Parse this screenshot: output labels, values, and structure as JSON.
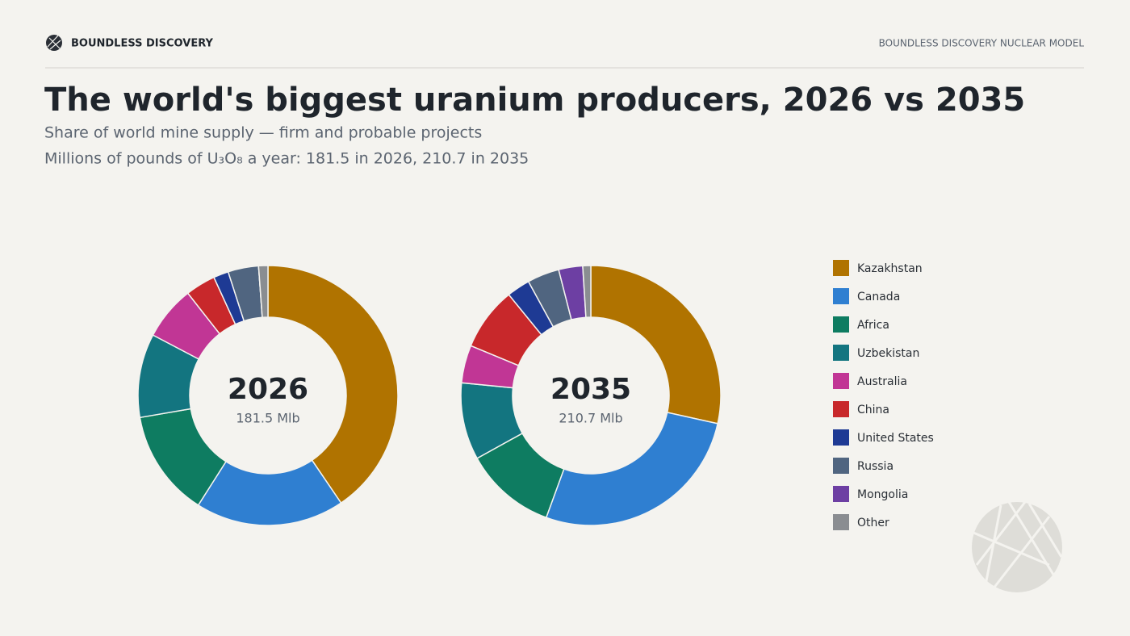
{
  "header": {
    "brand": "BOUNDLESS DISCOVERY",
    "model": "BOUNDLESS DISCOVERY NUCLEAR MODEL"
  },
  "chart_data": {
    "type": "donut",
    "title": "The world's biggest uranium producers, 2026 vs 2035",
    "subtitle": "Share of world mine supply — firm and probable projects",
    "subtitle2": "Millions of pounds of U₃O₈ a year: 181.5 in 2026, 210.7 in 2035",
    "categories": [
      "Kazakhstan",
      "Canada",
      "Africa",
      "Uzbekistan",
      "Australia",
      "China",
      "United States",
      "Russia",
      "Mongolia",
      "Other"
    ],
    "colors": [
      "#b07300",
      "#2f7fd1",
      "#0e7c61",
      "#137580",
      "#c13695",
      "#c8282b",
      "#1e3a94",
      "#506580",
      "#6d3fa3",
      "#8a8d91"
    ],
    "series": [
      {
        "name": "2026",
        "total_label": "181.5 Mlb",
        "values": [
          73.5,
          33.6,
          24.1,
          18.9,
          12.2,
          6.8,
          3.4,
          6.9,
          0,
          2.1
        ]
      },
      {
        "name": "2035",
        "total_label": "210.7 Mlb",
        "values": [
          60.0,
          57.1,
          24.0,
          20.2,
          9.9,
          16.6,
          6.1,
          8.4,
          6.3,
          2.1
        ]
      }
    ],
    "legend": "right"
  }
}
